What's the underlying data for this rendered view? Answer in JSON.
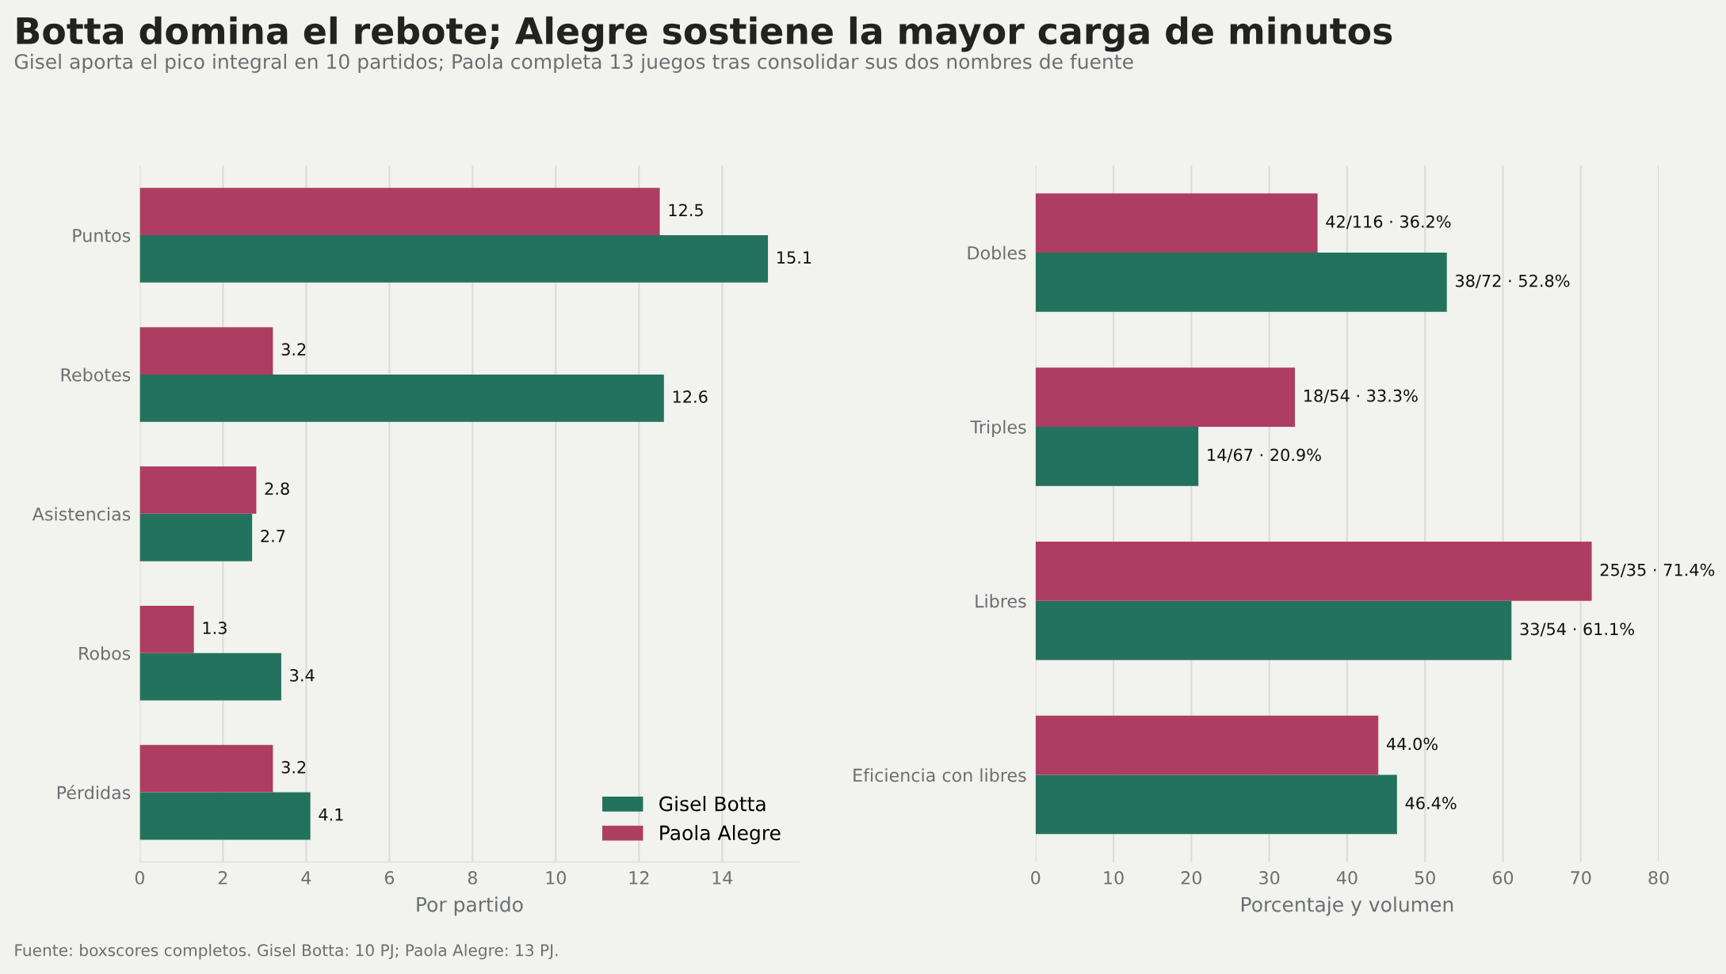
{
  "chart_data": [
    {
      "type": "bar",
      "orientation": "horizontal",
      "title": "Botta domina el rebote; Alegre sostiene la mayor carga de minutos",
      "subtitle": "Gisel aporta el pico integral en 10 partidos; Paola completa 13 juegos tras consolidar sus dos nombres de fuente",
      "xlabel": "Por partido",
      "categories": [
        "Puntos",
        "Rebotes",
        "Asistencias",
        "Robos",
        "Pérdidas"
      ],
      "series": [
        {
          "name": "Gisel Botta",
          "color": "#23725e",
          "values": [
            15.1,
            12.6,
            2.7,
            3.4,
            4.1
          ]
        },
        {
          "name": "Paola Alegre",
          "color": "#ad3d63",
          "values": [
            12.5,
            3.2,
            2.8,
            1.3,
            3.2
          ]
        }
      ],
      "xlim": [
        0,
        15.85
      ],
      "xticks": [
        0,
        2,
        4,
        6,
        8,
        10,
        12,
        14
      ],
      "grid": "x",
      "legend": "bottom right",
      "data_labels": true
    },
    {
      "type": "bar",
      "orientation": "horizontal",
      "xlabel": "Porcentaje y volumen",
      "categories": [
        "Dobles",
        "Triples",
        "Libres",
        "Eficiencia con libres"
      ],
      "series": [
        {
          "color": "#23725e",
          "values": [
            52.8,
            20.9,
            61.1,
            46.4
          ],
          "value_labels": [
            "38/72 · 52.8%",
            "14/67 · 20.9%",
            "33/54 · 61.1%",
            "46.4%"
          ]
        },
        {
          "color": "#ad3d63",
          "values": [
            36.2,
            33.3,
            71.4,
            44.0
          ],
          "value_labels": [
            "42/116 · 36.2%",
            "18/54 · 33.3%",
            "25/35 · 71.4%",
            "44.0%"
          ]
        }
      ],
      "xlim": [
        0,
        80
      ],
      "xticks": [
        0,
        10,
        20,
        30,
        40,
        50,
        60,
        70,
        80
      ],
      "grid": "x",
      "annotations": [
        "Fuente: boxscores completos. Gisel Botta: 10 PJ; Paola Alegre: 13 PJ."
      ]
    }
  ]
}
